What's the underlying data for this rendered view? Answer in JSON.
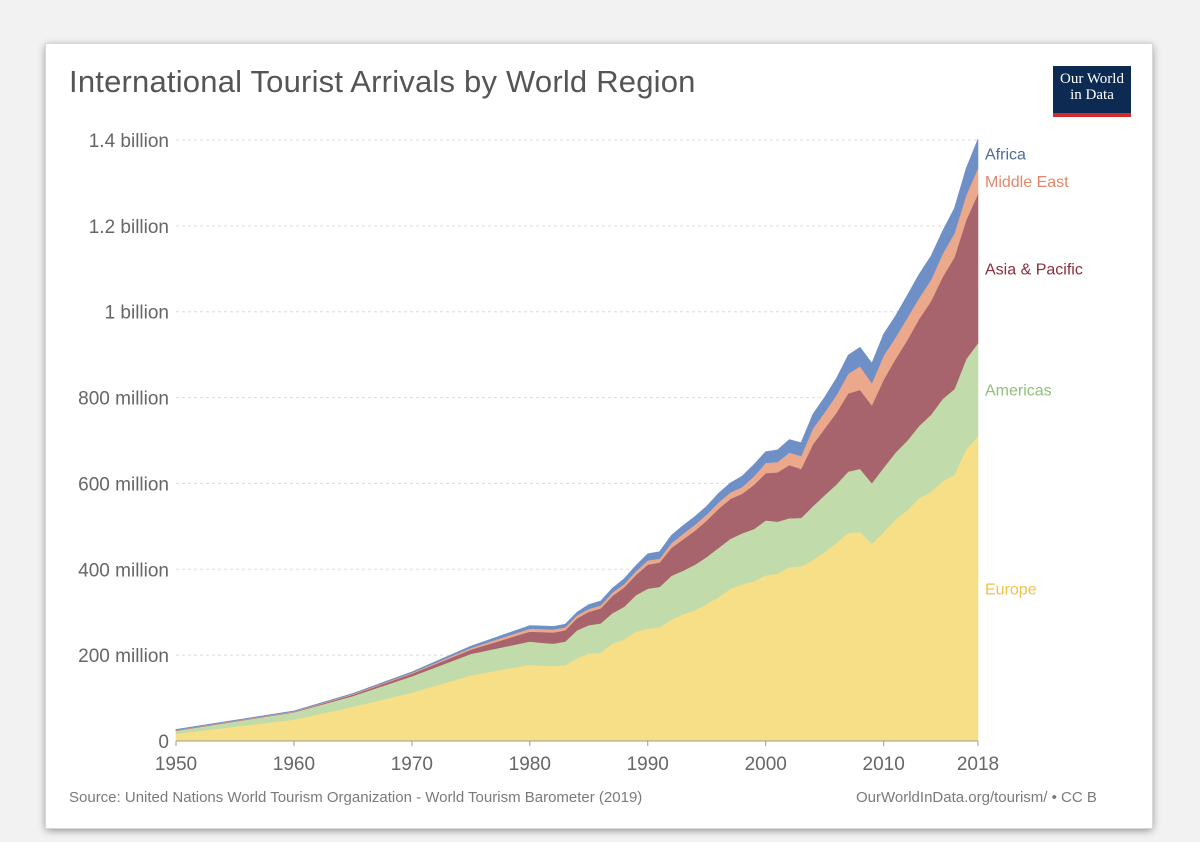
{
  "title": "International Tourist Arrivals by World Region",
  "logo": {
    "line1": "Our World",
    "line2": "in Data"
  },
  "footer": {
    "source": "Source: United Nations World Tourism Organization - World Tourism Barometer (2019)",
    "url": "OurWorldInData.org/tourism/ • CC B"
  },
  "colors": {
    "Europe": "#f7df87",
    "Americas": "#c2dbaa",
    "Asia & Pacific": "#a8646c",
    "Middle East": "#eba88b",
    "Africa": "#6f8fc7",
    "Africa_label": "#4c6a9c",
    "Middle East_label": "#e2866a",
    "Asia & Pacific_label": "#8c2d3a",
    "Americas_label": "#8fbf7a",
    "Europe_label": "#f0c24a"
  },
  "chart_data": {
    "type": "area",
    "stacked": true,
    "title": "International Tourist Arrivals by World Region",
    "xlabel": "",
    "ylabel": "",
    "xlim": [
      1950,
      2018
    ],
    "ylim": [
      0,
      1400000000
    ],
    "grid": true,
    "y_ticks": [
      {
        "value": 0,
        "label": "0"
      },
      {
        "value": 200000000,
        "label": "200 million"
      },
      {
        "value": 400000000,
        "label": "400 million"
      },
      {
        "value": 600000000,
        "label": "600 million"
      },
      {
        "value": 800000000,
        "label": "800 million"
      },
      {
        "value": 1000000000,
        "label": "1 billion"
      },
      {
        "value": 1200000000,
        "label": "1.2 billion"
      },
      {
        "value": 1400000000,
        "label": "1.4 billion"
      }
    ],
    "x_ticks": [
      {
        "value": 1950,
        "label": "1950"
      },
      {
        "value": 1960,
        "label": "1960"
      },
      {
        "value": 1970,
        "label": "1970"
      },
      {
        "value": 1980,
        "label": "1980"
      },
      {
        "value": 1990,
        "label": "1990"
      },
      {
        "value": 2000,
        "label": "2000"
      },
      {
        "value": 2010,
        "label": "2010"
      },
      {
        "value": 2018,
        "label": "2018"
      }
    ],
    "x": [
      1950,
      1960,
      1965,
      1970,
      1975,
      1980,
      1981,
      1982,
      1983,
      1984,
      1985,
      1986,
      1987,
      1988,
      1989,
      1990,
      1991,
      1992,
      1993,
      1994,
      1995,
      1996,
      1997,
      1998,
      1999,
      2000,
      2001,
      2002,
      2003,
      2004,
      2005,
      2006,
      2007,
      2008,
      2009,
      2010,
      2011,
      2012,
      2013,
      2014,
      2015,
      2016,
      2017,
      2018
    ],
    "series": [
      {
        "name": "Europe",
        "values": [
          17000000,
          50000000,
          80000000,
          113000000,
          153000000,
          178000000,
          175000000,
          175000000,
          177000000,
          193000000,
          204000000,
          206000000,
          227000000,
          237000000,
          255000000,
          262000000,
          265000000,
          283000000,
          295000000,
          305000000,
          320000000,
          335000000,
          355000000,
          365000000,
          372000000,
          386000000,
          390000000,
          405000000,
          407000000,
          422000000,
          440000000,
          462000000,
          485000000,
          487000000,
          460000000,
          487000000,
          516000000,
          538000000,
          566000000,
          580000000,
          605000000,
          620000000,
          680000000,
          710000000
        ]
      },
      {
        "name": "Americas",
        "values": [
          7000000,
          17000000,
          25000000,
          38000000,
          50000000,
          54000000,
          54000000,
          52000000,
          55000000,
          65000000,
          66000000,
          68000000,
          71000000,
          76000000,
          85000000,
          93000000,
          94000000,
          102000000,
          102000000,
          106000000,
          109000000,
          115000000,
          116000000,
          119000000,
          122000000,
          128000000,
          121000000,
          114000000,
          113000000,
          125000000,
          133000000,
          136000000,
          143000000,
          147000000,
          141000000,
          150000000,
          156000000,
          162000000,
          168000000,
          180000000,
          192000000,
          200000000,
          210000000,
          217000000
        ]
      },
      {
        "name": "Asia & Pacific",
        "values": [
          1000000,
          1000000,
          3000000,
          6000000,
          10000000,
          23000000,
          25000000,
          26000000,
          26000000,
          28000000,
          31000000,
          35000000,
          40000000,
          45000000,
          47000000,
          56000000,
          57000000,
          65000000,
          73000000,
          79000000,
          85000000,
          91000000,
          93000000,
          92000000,
          103000000,
          110000000,
          115000000,
          124000000,
          114000000,
          144000000,
          155000000,
          167000000,
          182000000,
          184000000,
          181000000,
          205000000,
          218000000,
          234000000,
          249000000,
          264000000,
          284000000,
          307000000,
          324000000,
          348000000
        ]
      },
      {
        "name": "Middle East",
        "values": [
          1000000,
          1000000,
          2000000,
          2000000,
          4000000,
          7000000,
          7000000,
          7000000,
          7000000,
          7000000,
          7000000,
          7000000,
          8000000,
          8000000,
          9000000,
          10000000,
          9000000,
          11000000,
          13000000,
          14000000,
          14000000,
          15000000,
          15000000,
          16000000,
          20000000,
          24000000,
          24000000,
          29000000,
          30000000,
          37000000,
          38000000,
          41000000,
          46000000,
          55000000,
          52000000,
          56000000,
          50000000,
          52000000,
          49000000,
          50000000,
          54000000,
          56000000,
          58000000,
          60000000
        ]
      },
      {
        "name": "Africa",
        "values": [
          1000000,
          1000000,
          1000000,
          2000000,
          4000000,
          7000000,
          7000000,
          7000000,
          7000000,
          7000000,
          10000000,
          10000000,
          10000000,
          12000000,
          13000000,
          15000000,
          16000000,
          18000000,
          19000000,
          19000000,
          19000000,
          21000000,
          22000000,
          25000000,
          27000000,
          26000000,
          28000000,
          30000000,
          31000000,
          33000000,
          35000000,
          39000000,
          43000000,
          44000000,
          46000000,
          50000000,
          50000000,
          52000000,
          55000000,
          55000000,
          53000000,
          58000000,
          62000000,
          67000000
        ]
      }
    ]
  }
}
